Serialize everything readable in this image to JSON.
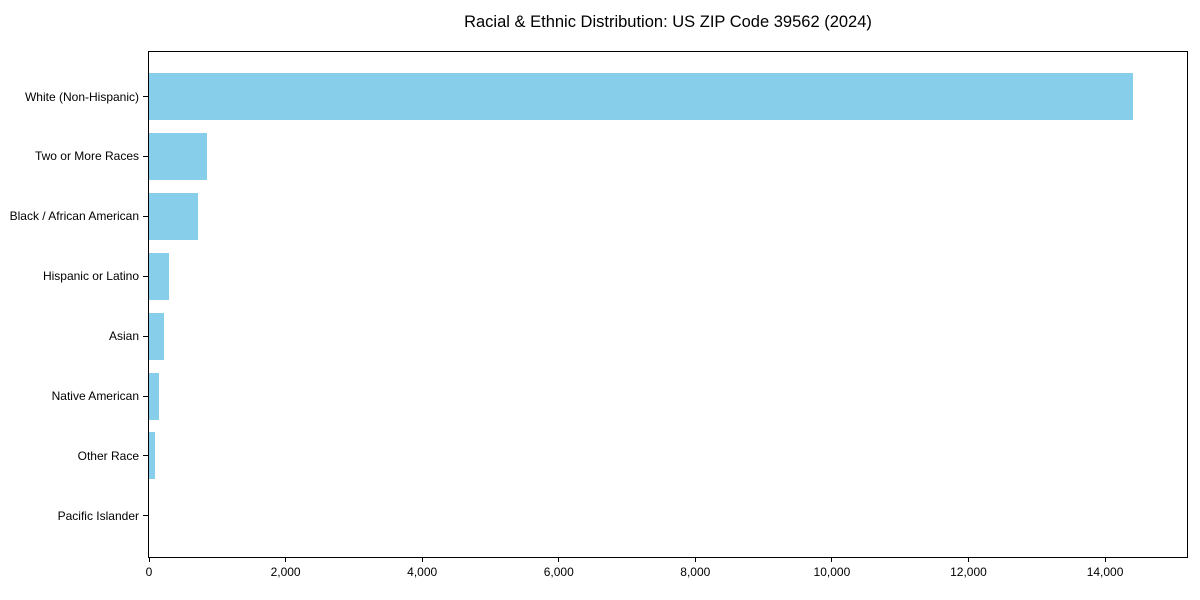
{
  "chart_data": {
    "type": "bar",
    "orientation": "horizontal",
    "title": "Racial & Ethnic Distribution: US ZIP Code 39562 (2024)",
    "categories": [
      "White (Non-Hispanic)",
      "Two or More Races",
      "Black / African American",
      "Hispanic or Latino",
      "Asian",
      "Native American",
      "Other Race",
      "Pacific Islander"
    ],
    "values": [
      14410,
      845,
      720,
      290,
      225,
      150,
      90,
      0
    ],
    "xlabel": "",
    "ylabel": "",
    "xlim": [
      0,
      15200
    ],
    "xticks": [
      0,
      2000,
      4000,
      6000,
      8000,
      10000,
      12000,
      14000
    ],
    "xtick_labels": [
      "0",
      "2,000",
      "4,000",
      "6,000",
      "8,000",
      "10,000",
      "12,000",
      "14,000"
    ],
    "bar_color": "#87CEEB",
    "frame_color": "#000000",
    "background": "#FFFFFF",
    "grid": false,
    "legend": false
  }
}
